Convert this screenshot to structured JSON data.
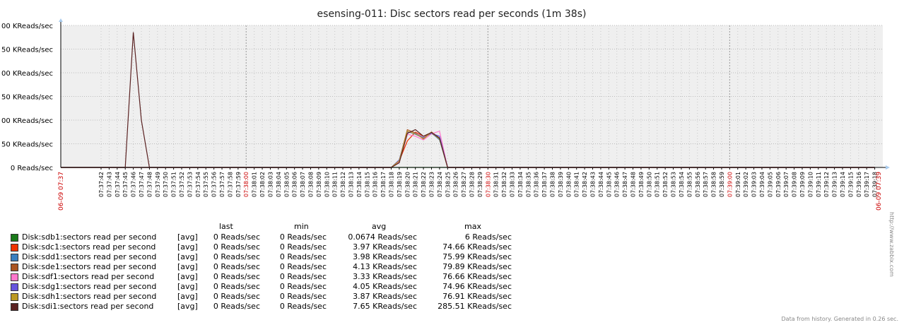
{
  "chart_data": {
    "type": "line",
    "title": "esensing-011: Disc sectors read per seconds (1m 38s)",
    "y_ticks": [
      "0 Reads/sec",
      "50 KReads/sec",
      "00 KReads/sec",
      "50 KReads/sec",
      "00 KReads/sec",
      "50 KReads/sec",
      "00 KReads/sec"
    ],
    "ylim": [
      0,
      300000
    ],
    "x_start_label": "06-09 07:37",
    "x_end_label": "06-09 07:39",
    "x_major_labels": {
      "07:38:00": "07:38:00",
      "07:38:30": "07:38:30",
      "07:39:00": "07:39:00"
    },
    "x_labels": [
      "07:37:42",
      "07:37:43",
      "07:37:44",
      "07:37:45",
      "07:37:46",
      "07:37:47",
      "07:37:48",
      "07:37:49",
      "07:37:50",
      "07:37:51",
      "07:37:52",
      "07:37:53",
      "07:37:54",
      "07:37:55",
      "07:37:56",
      "07:37:57",
      "07:37:58",
      "07:37:59",
      "07:38:00",
      "07:38:01",
      "07:38:02",
      "07:38:03",
      "07:38:04",
      "07:38:05",
      "07:38:06",
      "07:38:07",
      "07:38:08",
      "07:38:09",
      "07:38:10",
      "07:38:11",
      "07:38:12",
      "07:38:13",
      "07:38:14",
      "07:38:15",
      "07:38:16",
      "07:38:17",
      "07:38:18",
      "07:38:19",
      "07:38:20",
      "07:38:21",
      "07:38:22",
      "07:38:23",
      "07:38:24",
      "07:38:25",
      "07:38:26",
      "07:38:27",
      "07:38:28",
      "07:38:29",
      "07:38:30",
      "07:38:31",
      "07:38:32",
      "07:38:33",
      "07:38:34",
      "07:38:35",
      "07:38:36",
      "07:38:37",
      "07:38:38",
      "07:38:39",
      "07:38:40",
      "07:38:41",
      "07:38:42",
      "07:38:43",
      "07:38:44",
      "07:38:45",
      "07:38:46",
      "07:38:47",
      "07:38:48",
      "07:38:49",
      "07:38:50",
      "07:38:51",
      "07:38:52",
      "07:38:53",
      "07:38:54",
      "07:38:55",
      "07:38:56",
      "07:38:57",
      "07:38:58",
      "07:38:59",
      "07:39:00",
      "07:39:01",
      "07:39:02",
      "07:39:03",
      "07:39:04",
      "07:39:05",
      "07:39:06",
      "07:39:07",
      "07:39:08",
      "07:39:09",
      "07:39:10",
      "07:39:11",
      "07:39:12",
      "07:39:13",
      "07:39:14",
      "07:39:15",
      "07:39:16",
      "07:39:17",
      "07:39:18"
    ],
    "series": [
      {
        "name": "Disk:sdb1:sectors read per second",
        "color": "#1a7a1a",
        "points": [
          [
            "07:37:37",
            0
          ],
          [
            "07:39:18",
            0
          ]
        ]
      },
      {
        "name": "Disk:sdc1:sectors read per second",
        "color": "#ee3300",
        "points": [
          [
            "07:37:37",
            0
          ],
          [
            "07:38:18",
            0
          ],
          [
            "07:38:19",
            14000
          ],
          [
            "07:38:20",
            56000
          ],
          [
            "07:38:21",
            74660
          ],
          [
            "07:38:22",
            66000
          ],
          [
            "07:38:23",
            72000
          ],
          [
            "07:38:24",
            60000
          ],
          [
            "07:38:25",
            0
          ],
          [
            "07:39:18",
            0
          ]
        ]
      },
      {
        "name": "Disk:sdd1:sectors read per second",
        "color": "#3a7fbf",
        "points": [
          [
            "07:37:37",
            0
          ],
          [
            "07:38:18",
            0
          ],
          [
            "07:38:19",
            16000
          ],
          [
            "07:38:20",
            75990
          ],
          [
            "07:38:21",
            70000
          ],
          [
            "07:38:22",
            62000
          ],
          [
            "07:38:23",
            73000
          ],
          [
            "07:38:24",
            58000
          ],
          [
            "07:38:25",
            0
          ],
          [
            "07:39:18",
            0
          ]
        ]
      },
      {
        "name": "Disk:sde1:sectors read per second",
        "color": "#aa5522",
        "points": [
          [
            "07:37:37",
            0
          ],
          [
            "07:38:18",
            0
          ],
          [
            "07:38:19",
            15000
          ],
          [
            "07:38:20",
            79890
          ],
          [
            "07:38:21",
            73000
          ],
          [
            "07:38:22",
            60000
          ],
          [
            "07:38:23",
            75000
          ],
          [
            "07:38:24",
            62000
          ],
          [
            "07:38:25",
            0
          ],
          [
            "07:39:18",
            0
          ]
        ]
      },
      {
        "name": "Disk:sdf1:sectors read per second",
        "color": "#ff77cc",
        "points": [
          [
            "07:37:37",
            0
          ],
          [
            "07:38:18",
            0
          ],
          [
            "07:38:19",
            12000
          ],
          [
            "07:38:20",
            70000
          ],
          [
            "07:38:21",
            66000
          ],
          [
            "07:38:22",
            58000
          ],
          [
            "07:38:23",
            71000
          ],
          [
            "07:38:24",
            76660
          ],
          [
            "07:38:25",
            0
          ],
          [
            "07:39:18",
            0
          ]
        ]
      },
      {
        "name": "Disk:sdg1:sectors read per second",
        "color": "#6655dd",
        "points": [
          [
            "07:37:37",
            0
          ],
          [
            "07:38:18",
            0
          ],
          [
            "07:38:19",
            16000
          ],
          [
            "07:38:20",
            74960
          ],
          [
            "07:38:21",
            72000
          ],
          [
            "07:38:22",
            63000
          ],
          [
            "07:38:23",
            72000
          ],
          [
            "07:38:24",
            66000
          ],
          [
            "07:38:25",
            0
          ],
          [
            "07:39:18",
            0
          ]
        ]
      },
      {
        "name": "Disk:sdh1:sectors read per second",
        "color": "#bb9922",
        "points": [
          [
            "07:37:37",
            0
          ],
          [
            "07:38:18",
            0
          ],
          [
            "07:38:19",
            14000
          ],
          [
            "07:38:20",
            76910
          ],
          [
            "07:38:21",
            71000
          ],
          [
            "07:38:22",
            61000
          ],
          [
            "07:38:23",
            74000
          ],
          [
            "07:38:24",
            60000
          ],
          [
            "07:38:25",
            0
          ],
          [
            "07:39:18",
            0
          ]
        ]
      },
      {
        "name": "Disk:sdi1:sectors read per second",
        "color": "#5a2222",
        "points": [
          [
            "07:37:37",
            0
          ],
          [
            "07:37:44",
            0
          ],
          [
            "07:37:45",
            0
          ],
          [
            "07:37:46",
            285510
          ],
          [
            "07:37:47",
            100000
          ],
          [
            "07:37:48",
            0
          ],
          [
            "07:38:18",
            0
          ],
          [
            "07:38:19",
            10000
          ],
          [
            "07:38:20",
            72000
          ],
          [
            "07:38:21",
            80000
          ],
          [
            "07:38:22",
            66000
          ],
          [
            "07:38:23",
            74000
          ],
          [
            "07:38:24",
            62000
          ],
          [
            "07:38:25",
            0
          ],
          [
            "07:39:18",
            0
          ]
        ]
      }
    ]
  },
  "legend": {
    "headers": {
      "last": "last",
      "min": "min",
      "avg": "avg",
      "max": "max"
    },
    "rows": [
      {
        "name": "Disk:sdb1:sectors read per second",
        "func": "[avg]",
        "last": "0 Reads/sec",
        "min": "0 Reads/sec",
        "avg": "0.0674 Reads/sec",
        "max": "6 Reads/sec",
        "color": "#1a7a1a"
      },
      {
        "name": "Disk:sdc1:sectors read per second",
        "func": "[avg]",
        "last": "0 Reads/sec",
        "min": "0 Reads/sec",
        "avg": "3.97 KReads/sec",
        "max": "74.66 KReads/sec",
        "color": "#ee3300"
      },
      {
        "name": "Disk:sdd1:sectors read per second",
        "func": "[avg]",
        "last": "0 Reads/sec",
        "min": "0 Reads/sec",
        "avg": "3.98 KReads/sec",
        "max": "75.99 KReads/sec",
        "color": "#3a7fbf"
      },
      {
        "name": "Disk:sde1:sectors read per second",
        "func": "[avg]",
        "last": "0 Reads/sec",
        "min": "0 Reads/sec",
        "avg": "4.13 KReads/sec",
        "max": "79.89 KReads/sec",
        "color": "#aa5522"
      },
      {
        "name": "Disk:sdf1:sectors read per second",
        "func": "[avg]",
        "last": "0 Reads/sec",
        "min": "0 Reads/sec",
        "avg": "3.33 KReads/sec",
        "max": "76.66 KReads/sec",
        "color": "#ff77cc"
      },
      {
        "name": "Disk:sdg1:sectors read per second",
        "func": "[avg]",
        "last": "0 Reads/sec",
        "min": "0 Reads/sec",
        "avg": "4.05 KReads/sec",
        "max": "74.96 KReads/sec",
        "color": "#6655dd"
      },
      {
        "name": "Disk:sdh1:sectors read per second",
        "func": "[avg]",
        "last": "0 Reads/sec",
        "min": "0 Reads/sec",
        "avg": "3.87 KReads/sec",
        "max": "76.91 KReads/sec",
        "color": "#bb9922"
      },
      {
        "name": "Disk:sdi1:sectors read per second",
        "func": "[avg]",
        "last": "0 Reads/sec",
        "min": "0 Reads/sec",
        "avg": "7.65 KReads/sec",
        "max": "285.51 KReads/sec",
        "color": "#5a2222"
      }
    ]
  },
  "watermark": "http://www.zabbix.com",
  "footer": "Data from history. Generated in 0.26 sec."
}
